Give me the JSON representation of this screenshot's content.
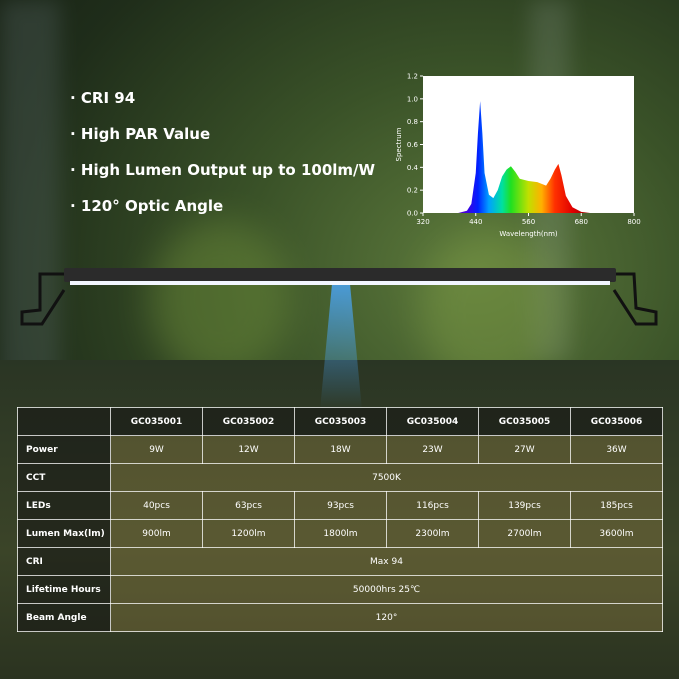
{
  "bullets": [
    "· CRI 94",
    "· High PAR Value",
    "· High Lumen Output up to 100lm/W",
    "· 120° Optic Angle"
  ],
  "spectrum_chart": {
    "type": "line",
    "y_label": "Spectrum",
    "x_label": "Wavelength(nm)",
    "x": [
      400,
      420,
      430,
      440,
      445,
      450,
      455,
      460,
      470,
      480,
      490,
      500,
      510,
      520,
      530,
      540,
      560,
      580,
      600,
      610,
      620,
      628,
      635,
      645,
      660,
      680,
      700
    ],
    "values": [
      0,
      0.02,
      0.08,
      0.35,
      0.7,
      0.98,
      0.7,
      0.35,
      0.16,
      0.13,
      0.2,
      0.32,
      0.38,
      0.41,
      0.36,
      0.3,
      0.28,
      0.27,
      0.24,
      0.3,
      0.38,
      0.43,
      0.33,
      0.15,
      0.05,
      0.01,
      0
    ],
    "xlim": [
      320,
      800
    ],
    "ylim": [
      0,
      1.2
    ],
    "xticks": [
      320,
      440,
      560,
      680,
      800
    ],
    "yticks": [
      {
        "value": 0,
        "label": "0.0"
      },
      {
        "value": 0.2,
        "label": "0.2"
      },
      {
        "value": 0.4,
        "label": "0.4"
      },
      {
        "value": 0.6,
        "label": "0.6"
      },
      {
        "value": 0.8,
        "label": "0.8"
      },
      {
        "value": 1,
        "label": "1.0"
      },
      {
        "value": 1.2,
        "label": "1.2"
      }
    ]
  },
  "table": {
    "models": [
      "GC035001",
      "GC035002",
      "GC035003",
      "GC035004",
      "GC035005",
      "GC035006"
    ],
    "rows": [
      {
        "label": "Power",
        "cells": [
          "9W",
          "12W",
          "18W",
          "23W",
          "27W",
          "36W"
        ]
      },
      {
        "label": "CCT",
        "cells": [
          "7500K"
        ]
      },
      {
        "label": "LEDs",
        "cells": [
          "40pcs",
          "63pcs",
          "93pcs",
          "116pcs",
          "139pcs",
          "185pcs"
        ]
      },
      {
        "label": "Lumen Max(lm)",
        "cells": [
          "900lm",
          "1200lm",
          "1800lm",
          "2300lm",
          "2700lm",
          "3600lm"
        ]
      },
      {
        "label": "CRI",
        "cells": [
          "Max 94"
        ]
      },
      {
        "label": "Lifetime Hours",
        "cells": [
          "50000hrs 25℃"
        ]
      },
      {
        "label": "Beam Angle",
        "cells": [
          "120°"
        ]
      }
    ]
  }
}
